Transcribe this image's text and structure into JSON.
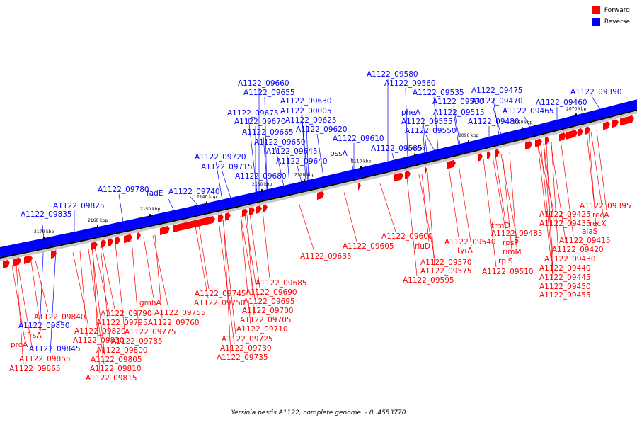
{
  "legend": [
    {
      "label": "Forward",
      "color": "#ff0000"
    },
    {
      "label": "Reverse",
      "color": "#0000ff"
    }
  ],
  "caption": "Yersinia pestis A1122, complete genome. - 0..4553770",
  "colors": {
    "forward": "#ff0000",
    "reverse": "#0000ff",
    "backbone": "#000000",
    "shadow": "#c8c8c8"
  },
  "ticks": [
    "2170 kbp",
    "2160 kbp",
    "2150 kbp",
    "2140 kbp",
    "2130 kbp",
    "2120 kbp",
    "2110 kbp",
    "2100 kbp",
    "2090 kbp",
    "2080 kbp",
    "2070 kbp"
  ],
  "reverse_labels": [
    "A1122_09580",
    "A1122_09560",
    "A1122_09535",
    "A1122_09475",
    "A1122_09390",
    "A1122_09660",
    "A1122_09655",
    "A1122_09630",
    "A1122_00005",
    "A1122_09675",
    "A1122_09670",
    "A1122_09625",
    "A1122_09665",
    "A1122_09620",
    "A1122_09650",
    "A1122_09610",
    "A1122_09645",
    "A1122_09640",
    "A1122_09720",
    "A1122_09715",
    "A1122_09680",
    "pssA",
    "A1122_09780",
    "fadE",
    "A1122_09740",
    "A1122_09825",
    "A1122_09835",
    "pheA",
    "A1122_09530",
    "A1122_09470",
    "A1122_09460",
    "A1122_09555",
    "A1122_09515",
    "A1122_09465",
    "A1122_09550",
    "A1122_09480",
    "A1122_09585",
    "A1122_09850",
    "A1122_09845"
  ],
  "forward_labels": [
    "A1122_09395",
    "recA",
    "recX",
    "A1122_09425",
    "alaS",
    "A1122_09435",
    "A1122_09415",
    "A1122_09420",
    "A1122_09430",
    "A1122_09440",
    "A1122_09445",
    "A1122_09450",
    "A1122_09455",
    "trmD",
    "A1122_09485",
    "rpsP",
    "rimM",
    "rplS",
    "A1122_09510",
    "A1122_09600",
    "rluD",
    "A1122_09540",
    "tyrA",
    "A1122_09570",
    "A1122_09575",
    "A1122_09595",
    "A1122_09605",
    "A1122_09635",
    "A1122_09685",
    "A1122_09690",
    "A1122_09695",
    "A1122_09700",
    "A1122_09705",
    "A1122_09710",
    "A1122_09725",
    "A1122_09730",
    "A1122_09735",
    "A1122_09745",
    "A1122_09750",
    "A1122_09755",
    "A1122_09760",
    "gmhA",
    "A1122_09790",
    "A1122_09795",
    "A1122_09775",
    "A1122_09785",
    "A1122_09840",
    "A1122_09820",
    "A1122_09830",
    "A1122_09800",
    "A1122_09805",
    "A1122_09810",
    "A1122_09815",
    "frsA",
    "proA",
    "A1122_09855",
    "A1122_09865"
  ]
}
